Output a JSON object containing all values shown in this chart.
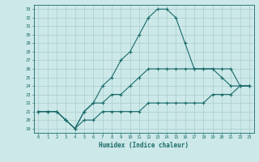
{
  "xlabel": "Humidex (Indice chaleur)",
  "bg_color": "#cce8e8",
  "grid_color": "#aacccc",
  "line_color": "#1a6b6b",
  "xlim": [
    -0.5,
    23.5
  ],
  "ylim": [
    18.5,
    33.5
  ],
  "yticks": [
    19,
    20,
    21,
    22,
    23,
    24,
    25,
    26,
    27,
    28,
    29,
    30,
    31,
    32,
    33
  ],
  "xticks": [
    0,
    1,
    2,
    3,
    4,
    5,
    6,
    7,
    8,
    9,
    10,
    11,
    12,
    13,
    14,
    15,
    16,
    17,
    18,
    19,
    20,
    21,
    22,
    23
  ],
  "line1_x": [
    0,
    1,
    2,
    3,
    4,
    5,
    6,
    7,
    8,
    9,
    10,
    11,
    12,
    13,
    14,
    15,
    16,
    17,
    18,
    19,
    20,
    21,
    22,
    23
  ],
  "line1_y": [
    21,
    21,
    21,
    20,
    19,
    21,
    22,
    24,
    25,
    27,
    28,
    30,
    32,
    33,
    33,
    32,
    29,
    26,
    26,
    26,
    25,
    24,
    24,
    24
  ],
  "line2_x": [
    0,
    1,
    2,
    3,
    4,
    5,
    6,
    7,
    8,
    9,
    10,
    11,
    12,
    13,
    14,
    15,
    16,
    17,
    18,
    19,
    20,
    21,
    22,
    23
  ],
  "line2_y": [
    21,
    21,
    21,
    20,
    19,
    21,
    22,
    22,
    23,
    23,
    24,
    25,
    26,
    26,
    26,
    26,
    26,
    26,
    26,
    26,
    26,
    26,
    24,
    24
  ],
  "line3_x": [
    0,
    1,
    2,
    3,
    4,
    5,
    6,
    7,
    8,
    9,
    10,
    11,
    12,
    13,
    14,
    15,
    16,
    17,
    18,
    19,
    20,
    21,
    22,
    23
  ],
  "line3_y": [
    21,
    21,
    21,
    20,
    19,
    20,
    20,
    21,
    21,
    21,
    21,
    21,
    22,
    22,
    22,
    22,
    22,
    22,
    22,
    23,
    23,
    23,
    24,
    24
  ]
}
